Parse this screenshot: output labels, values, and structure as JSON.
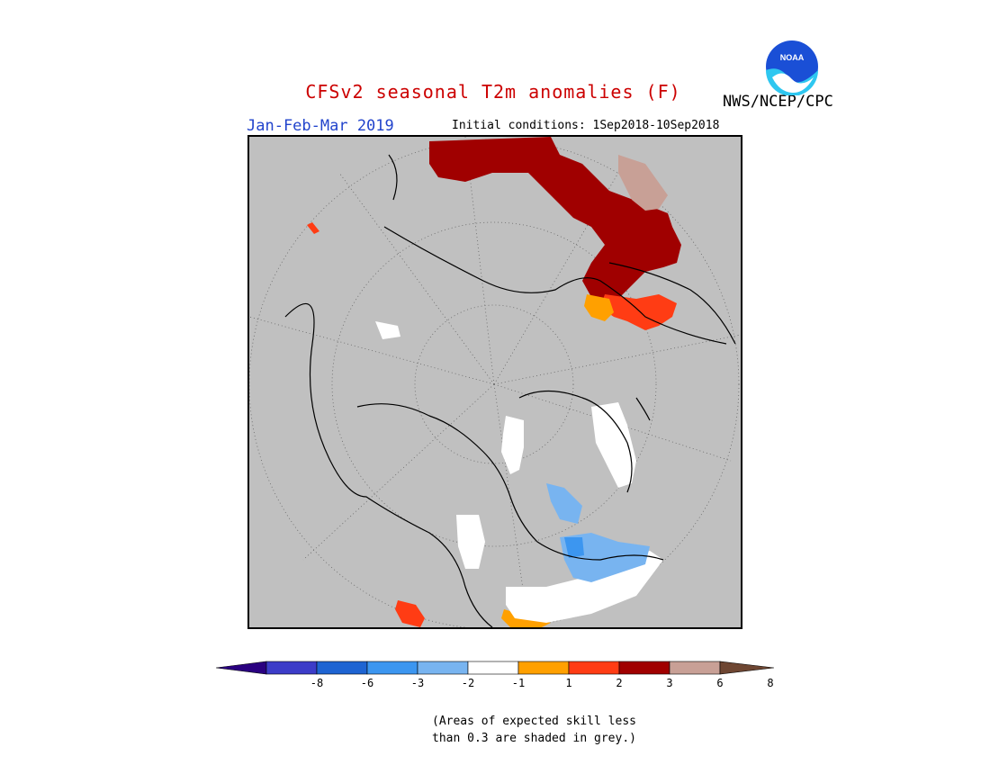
{
  "header": {
    "title": "CFSv2 seasonal T2m anomalies (F)",
    "season": "Jan-Feb-Mar 2019",
    "initial_conditions": "Initial conditions: 1Sep2018-10Sep2018",
    "agency": "NWS/NCEP/CPC",
    "logo_text": "NOAA"
  },
  "colorbar": {
    "ticks": [
      "-8",
      "-6",
      "-3",
      "-2",
      "-1",
      "1",
      "2",
      "3",
      "6",
      "8"
    ],
    "colors": [
      "#2a0080",
      "#3c3cc8",
      "#1e64d2",
      "#3c96f0",
      "#78b4f0",
      "#ffffff",
      "#ffa000",
      "#ff3c14",
      "#a00000",
      "#c8a096",
      "#6e4632"
    ]
  },
  "note": {
    "line1": "(Areas of expected skill less",
    "line2": "than 0.3 are shaded in grey.)"
  },
  "colors": {
    "skill_mask": "#c0c0c0",
    "map_border": "#000000",
    "title": "#cc0000",
    "season": "#2244cc"
  }
}
